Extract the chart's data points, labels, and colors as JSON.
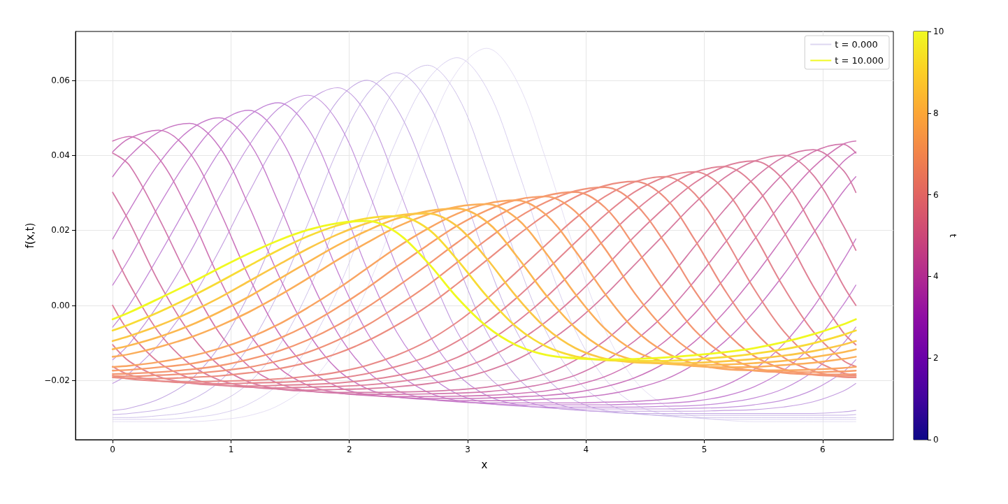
{
  "chart_data": {
    "type": "line",
    "xlabel": "x",
    "ylabel": "f(x,t)",
    "clabel": "t",
    "clim": [
      0,
      10
    ],
    "cticks": [
      0,
      2,
      4,
      6,
      8,
      10
    ],
    "xlim": [
      -0.314,
      6.597
    ],
    "xticks": [
      0,
      1,
      2,
      3,
      4,
      5,
      6
    ],
    "ylim": [
      -0.0358,
      0.073
    ],
    "yticks": [
      {
        "value": -0.02,
        "label": "−0.02"
      },
      {
        "value": 0,
        "label": "0.00"
      },
      {
        "value": 0.02,
        "label": "0.02"
      },
      {
        "value": 0.04,
        "label": "0.04"
      },
      {
        "value": 0.06,
        "label": "0.06"
      }
    ],
    "grid": true,
    "legend": "top right",
    "marker": "none",
    "line_style": "solid",
    "x": [
      0,
      0.14,
      0.39,
      0.65,
      0.9,
      1.15,
      1.4,
      1.65,
      1.9,
      2.15,
      2.4,
      2.66,
      2.91,
      3.16,
      3.41,
      3.66,
      3.91,
      4.16,
      4.41,
      4.67,
      4.92,
      5.17,
      5.42,
      5.67,
      5.92,
      6.17,
      6.28
    ],
    "series": [
      {
        "name": "t = 0.000",
        "color": "#ddd6f0",
        "values": [
          -0.031,
          -0.031,
          -0.031,
          -0.031,
          -0.0305,
          -0.0294,
          -0.0267,
          -0.0212,
          -0.0111,
          0.0045,
          0.0247,
          0.0459,
          0.0623,
          0.0685,
          0.0601,
          0.039,
          0.0142,
          -0.0065,
          -0.0199,
          -0.0267,
          -0.0296,
          -0.0306,
          -0.031,
          -0.031,
          -0.031,
          -0.031,
          -0.031
        ]
      },
      {
        "color": "#d2c8ec",
        "values": [
          -0.0304,
          -0.0304,
          -0.0304,
          -0.0299,
          -0.0289,
          -0.0263,
          -0.021,
          -0.0111,
          0.004,
          0.0236,
          0.0441,
          0.06,
          0.066,
          0.0579,
          0.0375,
          0.0134,
          -0.0067,
          -0.0196,
          -0.0263,
          -0.0291,
          -0.03,
          -0.0304,
          -0.0304,
          -0.0304,
          -0.0304,
          -0.0304,
          -0.0304
        ]
      },
      {
        "color": "#cbbde8",
        "values": [
          -0.0299,
          -0.0299,
          -0.0294,
          -0.0284,
          -0.0259,
          -0.0207,
          -0.0111,
          0.0036,
          0.0227,
          0.0427,
          0.0582,
          0.064,
          0.0561,
          0.0362,
          0.0127,
          -0.0068,
          -0.0194,
          -0.0259,
          -0.0286,
          -0.0295,
          -0.0299,
          -0.0299,
          -0.0299,
          -0.0299,
          -0.0299,
          -0.0299,
          -0.0299
        ]
      },
      {
        "color": "#c6b2e6",
        "values": [
          -0.0291,
          -0.0288,
          -0.0278,
          -0.0254,
          -0.0204,
          -0.011,
          0.0033,
          0.0218,
          0.0413,
          0.0563,
          0.062,
          0.0543,
          0.035,
          0.0121,
          -0.0068,
          -0.0191,
          -0.0254,
          -0.028,
          -0.0289,
          -0.0293,
          -0.0293,
          -0.0293,
          -0.0293,
          -0.0293,
          -0.0293,
          -0.0293,
          -0.0291
        ]
      },
      {
        "color": "#c2a6e2",
        "values": [
          -0.028,
          -0.0274,
          -0.025,
          -0.0201,
          -0.011,
          0.0029,
          0.0209,
          0.0398,
          0.0545,
          0.06,
          0.0525,
          0.0337,
          0.0115,
          -0.007,
          -0.0189,
          -0.025,
          -0.0276,
          -0.0284,
          -0.0288,
          -0.0288,
          -0.0288,
          -0.0288,
          -0.0288,
          -0.0288,
          -0.0288,
          -0.0284,
          -0.028
        ]
      },
      {
        "color": "#c49ee0",
        "values": [
          -0.0208,
          -0.0181,
          -0.0104,
          0.0007,
          0.0146,
          0.03,
          0.0441,
          0.0543,
          0.058,
          0.0508,
          0.0325,
          0.0109,
          -0.007,
          -0.0185,
          -0.0245,
          -0.027,
          -0.0279,
          -0.0282,
          -0.0282,
          -0.0282,
          -0.0282,
          -0.028,
          -0.0278,
          -0.0271,
          -0.0257,
          -0.0229,
          -0.0208
        ]
      },
      {
        "color": "#c393dc",
        "values": [
          -0.0145,
          -0.0103,
          0.0004,
          0.0139,
          0.0288,
          0.0425,
          0.0524,
          0.056,
          0.049,
          0.0313,
          0.0104,
          -0.007,
          -0.0182,
          -0.024,
          -0.0264,
          -0.0273,
          -0.0276,
          -0.0276,
          -0.0276,
          -0.0276,
          -0.0274,
          -0.0272,
          -0.0265,
          -0.0252,
          -0.0225,
          -0.0178,
          -0.0145
        ]
      },
      {
        "color": "#c389d8",
        "values": [
          -0.0058,
          0.0001,
          0.0132,
          0.0276,
          0.0409,
          0.0505,
          0.054,
          0.0472,
          0.03,
          0.0097,
          -0.0071,
          -0.018,
          -0.0236,
          -0.026,
          -0.0268,
          -0.0271,
          -0.0271,
          -0.0271,
          -0.0271,
          -0.0269,
          -0.0267,
          -0.026,
          -0.0247,
          -0.0222,
          -0.0176,
          -0.0103,
          -0.0058
        ]
      },
      {
        "color": "#c682d2",
        "values": [
          0.0054,
          0.0125,
          0.0265,
          0.0394,
          0.0486,
          0.052,
          0.0454,
          0.0288,
          0.0091,
          -0.0072,
          -0.0177,
          -0.0231,
          -0.0254,
          -0.0262,
          -0.0265,
          -0.0265,
          -0.0265,
          -0.0265,
          -0.0263,
          -0.0261,
          -0.0255,
          -0.0242,
          -0.0217,
          -0.0173,
          -0.0103,
          0,
          0.0054
        ]
      },
      {
        "color": "#c77dcb",
        "values": [
          0.0177,
          0.0253,
          0.0378,
          0.0467,
          0.05,
          0.0436,
          0.0275,
          0.0085,
          -0.0073,
          -0.0175,
          -0.0227,
          -0.0249,
          -0.0257,
          -0.026,
          -0.026,
          -0.026,
          -0.026,
          -0.0258,
          -0.0256,
          -0.025,
          -0.0238,
          -0.0214,
          -0.0171,
          -0.0103,
          -0.0005,
          0.0118,
          0.0177
        ]
      },
      {
        "color": "#c878c4",
        "values": [
          0.0343,
          0.0397,
          0.0462,
          0.0485,
          0.0423,
          0.0266,
          0.0082,
          -0.0072,
          -0.0171,
          -0.0222,
          -0.0244,
          -0.0251,
          -0.0254,
          -0.0254,
          -0.0253,
          -0.025,
          -0.0246,
          -0.0238,
          -0.0222,
          -0.0197,
          -0.0156,
          -0.0097,
          -0.0017,
          0.0082,
          0.0192,
          0.0302,
          0.0343
        ]
      },
      {
        "color": "#cb76bd",
        "values": [
          0.0409,
          0.0445,
          0.0467,
          0.0407,
          0.0255,
          0.0077,
          -0.0072,
          -0.0168,
          -0.0217,
          -0.0238,
          -0.0245,
          -0.0248,
          -0.0248,
          -0.0247,
          -0.0244,
          -0.024,
          -0.0232,
          -0.0217,
          -0.0193,
          -0.0153,
          -0.0096,
          -0.0018,
          0.0077,
          0.0183,
          0.029,
          0.0382,
          0.0409
        ]
      },
      {
        "color": "#d076b5",
        "values": [
          0.0438,
          0.045,
          0.0392,
          0.0245,
          0.0072,
          -0.0073,
          -0.0165,
          -0.0213,
          -0.0233,
          -0.024,
          -0.0243,
          -0.0243,
          -0.0242,
          -0.024,
          -0.0235,
          -0.0228,
          -0.0213,
          -0.019,
          -0.0151,
          -0.0095,
          -0.0021,
          0.0072,
          0.0175,
          0.0279,
          0.0368,
          0.0429,
          0.0438
        ]
      },
      {
        "color": "#d278ad",
        "values": [
          0.0406,
          0.0374,
          0.0233,
          0.0066,
          -0.0073,
          -0.0162,
          -0.0208,
          -0.0228,
          -0.0234,
          -0.0237,
          -0.0237,
          -0.0236,
          -0.0234,
          -0.023,
          -0.0222,
          -0.0208,
          -0.0186,
          -0.0148,
          -0.0095,
          -0.0023,
          0.0066,
          0.0165,
          0.0265,
          0.0351,
          0.0409,
          0.043,
          0.0406
        ]
      },
      {
        "color": "#d47aa6",
        "values": [
          0.0301,
          0.0223,
          0.0062,
          -0.0073,
          -0.016,
          -0.0204,
          -0.0223,
          -0.0229,
          -0.0232,
          -0.0232,
          -0.0231,
          -0.0229,
          -0.0225,
          -0.0218,
          -0.0204,
          -0.0182,
          -0.0146,
          -0.0094,
          -0.0024,
          0.0062,
          0.0158,
          0.0255,
          0.0338,
          0.0395,
          0.0415,
          0.0361,
          0.0301
        ]
      },
      {
        "color": "#d87da0",
        "values": [
          0.0147,
          0.0058,
          -0.0072,
          -0.0156,
          -0.0199,
          -0.0217,
          -0.0223,
          -0.0226,
          -0.0224,
          -0.0222,
          -0.0217,
          -0.0209,
          -0.0196,
          -0.0175,
          -0.0145,
          -0.0101,
          -0.0044,
          0.0027,
          0.0108,
          0.0192,
          0.0273,
          0.034,
          0.0384,
          0.04,
          0.0347,
          0.0215,
          0.0147
        ]
      },
      {
        "color": "#dd7f9a",
        "values": [
          0,
          -0.0071,
          -0.0152,
          -0.0194,
          -0.0212,
          -0.0218,
          -0.022,
          -0.0218,
          -0.0216,
          -0.0212,
          -0.0204,
          -0.0191,
          -0.0171,
          -0.0141,
          -0.0099,
          -0.0044,
          0.0024,
          0.0102,
          0.0184,
          0.0262,
          0.0327,
          0.037,
          0.0385,
          0.0334,
          0.0206,
          0.0055,
          0
        ]
      },
      {
        "color": "#e08295",
        "values": [
          -0.0105,
          -0.0149,
          -0.019,
          -0.0207,
          -0.0213,
          -0.0215,
          -0.0213,
          -0.0211,
          -0.0207,
          -0.0199,
          -0.0187,
          -0.0168,
          -0.0139,
          -0.0098,
          -0.0045,
          0.0021,
          0.0097,
          0.0176,
          0.0251,
          0.0314,
          0.0355,
          0.037,
          0.0321,
          0.0197,
          0.0051,
          -0.0071,
          -0.0105
        ]
      },
      {
        "color": "#e4868f",
        "values": [
          -0.0163,
          -0.0185,
          -0.0201,
          -0.0207,
          -0.0209,
          -0.0207,
          -0.0205,
          -0.0201,
          -0.0194,
          -0.0182,
          -0.0163,
          -0.0136,
          -0.0096,
          -0.0045,
          0.0019,
          0.0092,
          0.0168,
          0.0241,
          0.0302,
          0.0342,
          0.0356,
          0.0309,
          0.0189,
          0.0048,
          -0.007,
          -0.0146,
          -0.0163
        ]
      },
      {
        "color": "#e88a88",
        "values": [
          -0.0187,
          -0.0196,
          -0.0202,
          -0.0204,
          -0.0202,
          -0.02,
          -0.0196,
          -0.0189,
          -0.0178,
          -0.016,
          -0.0133,
          -0.0095,
          -0.0045,
          0.0017,
          0.0088,
          0.0161,
          0.0232,
          0.029,
          0.0329,
          0.0343,
          0.0297,
          0.0181,
          0.0044,
          -0.0069,
          -0.0143,
          -0.018,
          -0.0187
        ]
      },
      {
        "color": "#ec8d80",
        "values": [
          -0.0192,
          -0.0194,
          -0.0195,
          -0.0192,
          -0.0188,
          -0.018,
          -0.0169,
          -0.0152,
          -0.0128,
          -0.0095,
          -0.0053,
          -0.0002,
          0.0057,
          0.012,
          0.0184,
          0.0242,
          0.0289,
          0.0319,
          0.033,
          0.0286,
          0.0174,
          0.0042,
          -0.0068,
          -0.0139,
          -0.0175,
          -0.0191,
          -0.0192
        ]
      },
      {
        "color": "#f09279",
        "values": [
          -0.0188,
          -0.0189,
          -0.0186,
          -0.0182,
          -0.0175,
          -0.0165,
          -0.0148,
          -0.0125,
          -0.0093,
          -0.0053,
          -0.0003,
          0.0053,
          0.0114,
          0.0175,
          0.0231,
          0.0275,
          0.0305,
          0.0315,
          0.0272,
          0.0165,
          0.0038,
          -0.0067,
          -0.0135,
          -0.017,
          -0.0185,
          -0.0188,
          -0.0188
        ]
      },
      {
        "color": "#f49772",
        "values": [
          -0.0183,
          -0.0182,
          -0.0178,
          -0.0171,
          -0.0161,
          -0.0144,
          -0.0122,
          -0.0092,
          -0.0053,
          -0.0005,
          0.0049,
          0.0108,
          0.0167,
          0.0221,
          0.0264,
          0.0292,
          0.0302,
          0.0261,
          0.0157,
          0.0035,
          -0.0067,
          -0.0132,
          -0.0166,
          -0.018,
          -0.0184,
          -0.0184,
          -0.0183
        ]
      },
      {
        "color": "#f79d6b",
        "values": [
          -0.0174,
          -0.0172,
          -0.0165,
          -0.0156,
          -0.014,
          -0.0118,
          -0.0089,
          -0.0052,
          -0.0006,
          0.0046,
          0.0103,
          0.016,
          0.0212,
          0.0253,
          0.0281,
          0.029,
          0.025,
          0.0151,
          0.0033,
          -0.0065,
          -0.0128,
          -0.0161,
          -0.0174,
          -0.0178,
          -0.0178,
          -0.0176,
          -0.0174
        ]
      },
      {
        "color": "#f9a563",
        "values": [
          -0.0164,
          -0.0161,
          -0.0151,
          -0.0136,
          -0.0115,
          -0.0087,
          -0.0051,
          -0.0006,
          0.0044,
          0.0099,
          0.0154,
          0.0204,
          0.0244,
          0.0271,
          0.028,
          0.0242,
          0.0145,
          0.0031,
          -0.0064,
          -0.0125,
          -0.0156,
          -0.017,
          -0.0173,
          -0.0173,
          -0.0171,
          -0.0167,
          -0.0164
        ]
      },
      {
        "color": "#fbae5a",
        "values": [
          -0.0137,
          -0.013,
          -0.0111,
          -0.0086,
          -0.0055,
          -0.0018,
          0.0025,
          0.0072,
          0.0121,
          0.0167,
          0.0209,
          0.0242,
          0.0263,
          0.027,
          0.0233,
          0.014,
          0.003,
          -0.0062,
          -0.0121,
          -0.0151,
          -0.0162,
          -0.0165,
          -0.0164,
          -0.0159,
          -0.0153,
          -0.0143,
          -0.0137
        ]
      },
      {
        "color": "#fcb850",
        "values": [
          -0.0117,
          -0.0107,
          -0.0084,
          -0.0054,
          -0.0018,
          0.0023,
          0.0069,
          0.0115,
          0.016,
          0.0199,
          0.0231,
          0.0251,
          0.0258,
          0.0223,
          0.0133,
          0.0028,
          -0.006,
          -0.0117,
          -0.0146,
          -0.0156,
          -0.0159,
          -0.0158,
          -0.0154,
          -0.0148,
          -0.0138,
          -0.0125,
          -0.0117
        ]
      },
      {
        "color": "#fbc745",
        "values": [
          -0.0095,
          -0.0082,
          -0.0054,
          -0.0019,
          0.002,
          0.0064,
          0.0108,
          0.0151,
          0.0189,
          0.0219,
          0.0239,
          0.0245,
          0.0211,
          0.0125,
          0.0024,
          -0.006,
          -0.0114,
          -0.0142,
          -0.0152,
          -0.0154,
          -0.0153,
          -0.0149,
          -0.0143,
          -0.0134,
          -0.0122,
          -0.0105,
          -0.0095
        ]
      },
      {
        "color": "#f8db35",
        "values": [
          -0.0067,
          -0.0051,
          -0.0018,
          0.0021,
          0.0062,
          0.0105,
          0.0147,
          0.0184,
          0.0213,
          0.0232,
          0.0238,
          0.0205,
          0.0122,
          0.0025,
          -0.0057,
          -0.0109,
          -0.0136,
          -0.0146,
          -0.0148,
          -0.0148,
          -0.0144,
          -0.0138,
          -0.0129,
          -0.0117,
          -0.0101,
          -0.0079,
          -0.0067
        ]
      },
      {
        "name": "t = 10.000",
        "color": "#f0f921",
        "values": [
          -0.0037,
          -0.0019,
          0.0018,
          0.0058,
          0.0099,
          0.0138,
          0.0173,
          0.0201,
          0.0219,
          0.0225,
          0.0194,
          0.0115,
          0.0021,
          -0.0056,
          -0.0106,
          -0.0132,
          -0.0141,
          -0.0144,
          -0.0143,
          -0.0139,
          -0.0133,
          -0.0125,
          -0.0114,
          -0.0098,
          -0.0077,
          -0.0051,
          -0.0037
        ]
      }
    ]
  }
}
